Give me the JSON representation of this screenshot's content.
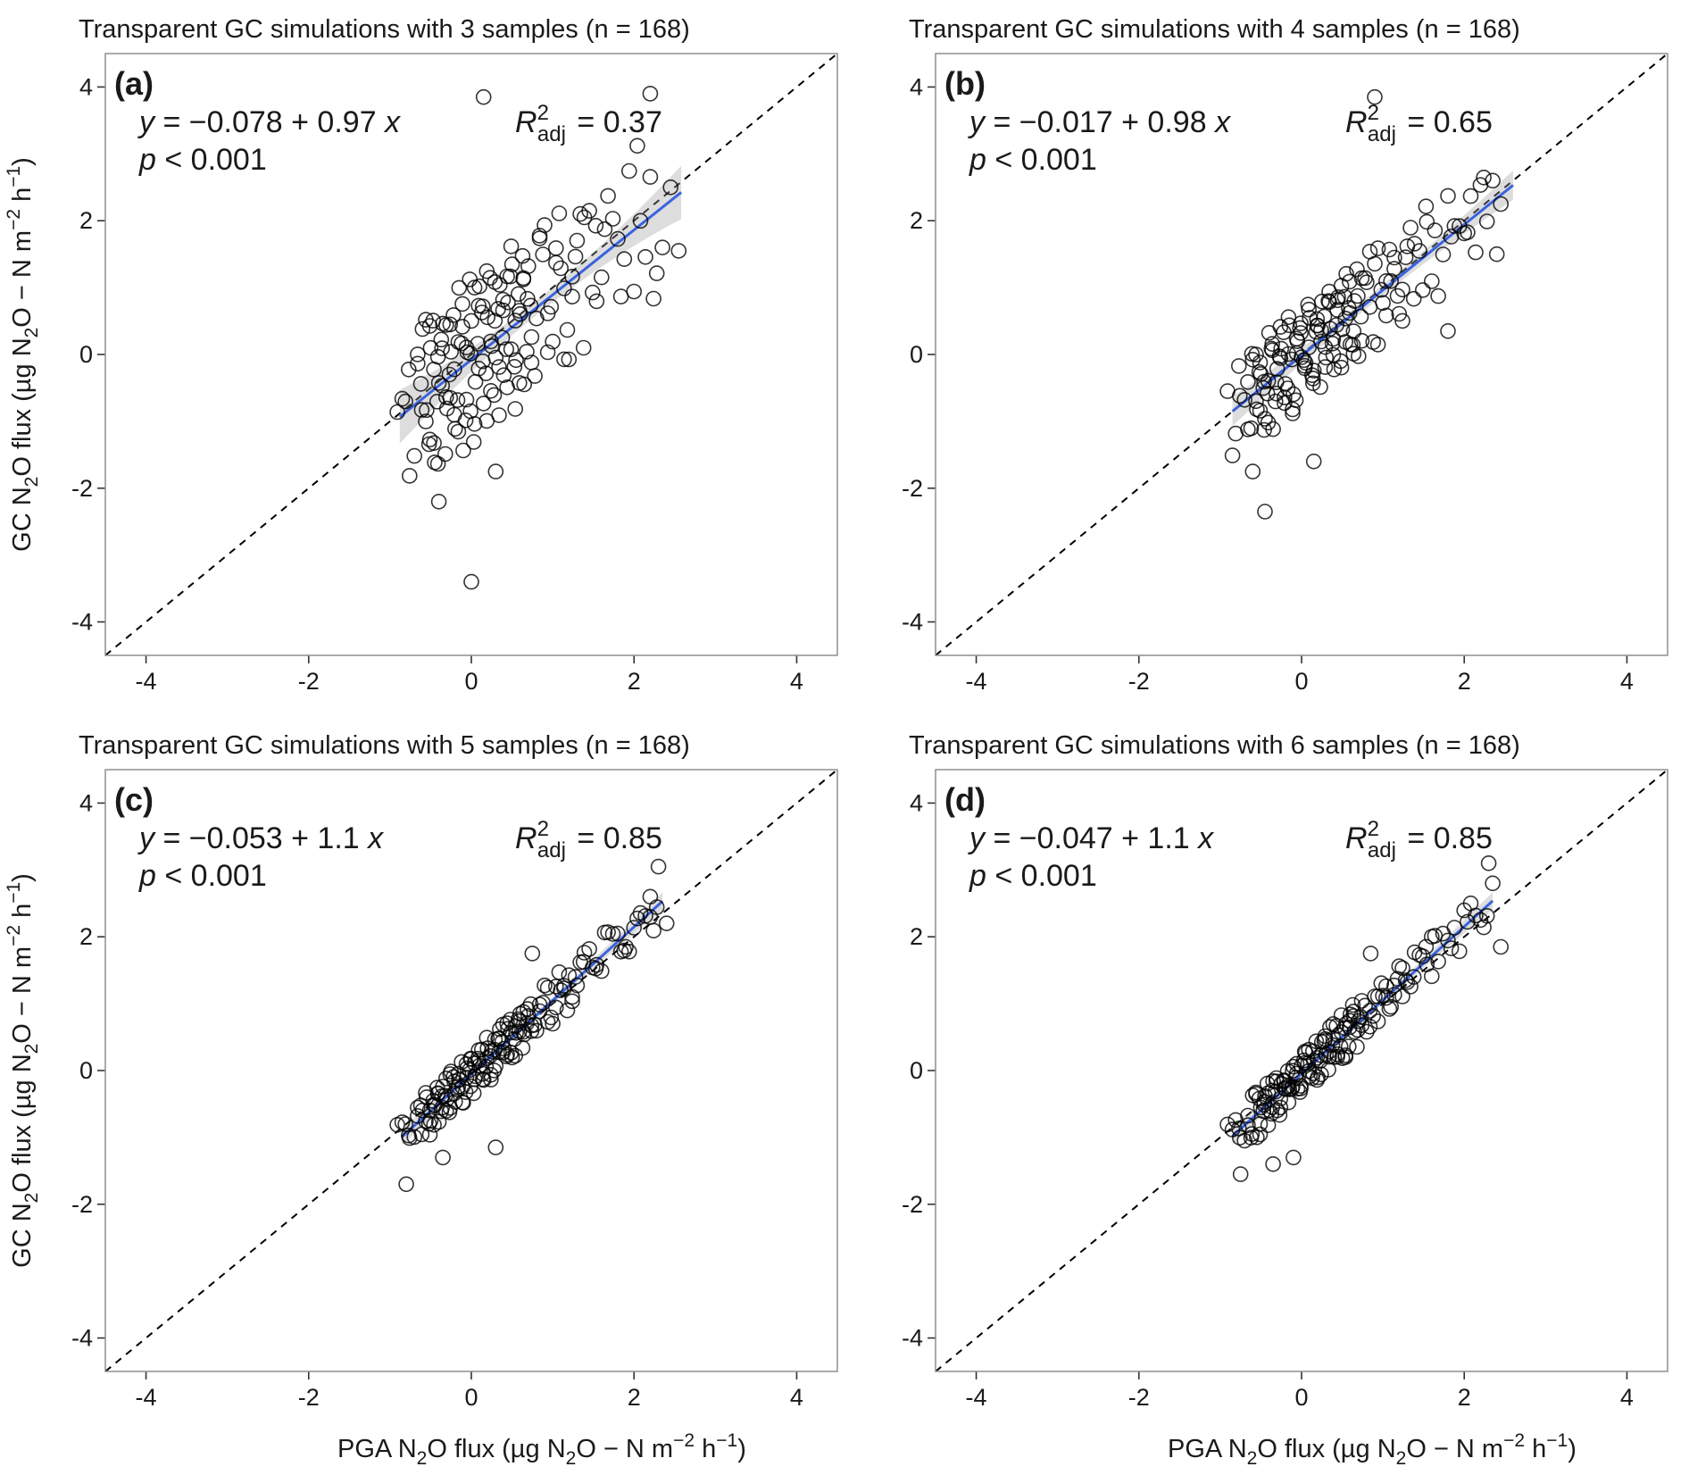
{
  "page": {
    "background": "#ffffff"
  },
  "chart_data": {
    "type": "scatter",
    "layout": "2x2",
    "shared": {
      "xlabel_segments": [
        {
          "t": "PGA N"
        },
        {
          "t": "2",
          "s": "sub"
        },
        {
          "t": "O flux (µg N"
        },
        {
          "t": "2",
          "s": "sub"
        },
        {
          "t": "O − N m"
        },
        {
          "t": "−2",
          "s": "sup"
        },
        {
          "t": " h"
        },
        {
          "t": "−1",
          "s": "sup"
        },
        {
          "t": ")"
        }
      ],
      "ylabel_segments": [
        {
          "t": "GC N"
        },
        {
          "t": "2",
          "s": "sub"
        },
        {
          "t": "O flux (µg N"
        },
        {
          "t": "2",
          "s": "sub"
        },
        {
          "t": "O − N m"
        },
        {
          "t": "−2",
          "s": "sup"
        },
        {
          "t": " h"
        },
        {
          "t": "−1",
          "s": "sup"
        },
        {
          "t": ")"
        }
      ],
      "xlim": [
        -4.5,
        4.5
      ],
      "ylim": [
        -4.5,
        4.5
      ],
      "ticks": [
        -4,
        -2,
        0,
        2,
        4
      ],
      "tick_labels": [
        "-4",
        "-2",
        "0",
        "2",
        "4"
      ],
      "n_per_panel": 168,
      "grid": "off",
      "identity_line": {
        "style": "dashed",
        "color": "#000000"
      },
      "fit_line_color": "#3a62e0",
      "ci_color": "#9e9e9e",
      "ci_opacity": 0.35,
      "point_color": "#000000",
      "points_note": "point coordinates estimated from plot; y = intercept + slope*x + resid_scale*residual_base[(i%40 + resid_step*floor(i/40) + resid_start) % 40], plus listed outlier points",
      "x_values": [
        -0.85,
        -0.7,
        -0.6,
        -0.55,
        -0.5,
        -0.45,
        -0.4,
        -0.35,
        -0.3,
        -0.25,
        -0.2,
        -0.15,
        -0.1,
        -0.05,
        0,
        0.05,
        0.1,
        0.15,
        0.2,
        0.25,
        0.3,
        0.35,
        0.4,
        0.45,
        0.5,
        0.55,
        0.6,
        0.65,
        0.7,
        0.8,
        0.9,
        1,
        1.1,
        1.2,
        1.3,
        1.45,
        1.6,
        1.8,
        2,
        2.2,
        -0.81,
        -0.66,
        -0.56,
        -0.51,
        -0.46,
        -0.41,
        -0.36,
        -0.31,
        -0.26,
        -0.21,
        -0.16,
        -0.11,
        -0.06,
        -0.01,
        0.04,
        0.09,
        0.14,
        0.19,
        0.24,
        0.29,
        0.34,
        0.39,
        0.44,
        0.49,
        0.54,
        0.59,
        0.64,
        0.69,
        0.74,
        0.84,
        0.94,
        1.04,
        1.14,
        1.24,
        1.34,
        1.49,
        1.64,
        1.84,
        2.04,
        2.24,
        -0.91,
        -0.76,
        -0.66,
        -0.61,
        -0.56,
        -0.51,
        -0.46,
        -0.41,
        -0.36,
        -0.31,
        -0.26,
        -0.21,
        -0.16,
        -0.11,
        -0.06,
        -0.01,
        0.04,
        0.09,
        0.14,
        0.19,
        0.24,
        0.29,
        0.34,
        0.39,
        0.44,
        0.49,
        0.54,
        0.59,
        0.64,
        0.74,
        0.84,
        0.94,
        1.04,
        1.14,
        1.24,
        1.39,
        1.54,
        1.74,
        1.94,
        2.14,
        -0.77,
        -0.62,
        -0.52,
        -0.47,
        -0.42,
        -0.37,
        -0.32,
        -0.27,
        -0.22,
        -0.17,
        -0.12,
        -0.07,
        -0.02,
        0.03,
        0.08,
        0.13,
        0.18,
        0.23,
        0.28,
        0.33,
        0.38,
        0.43,
        0.48,
        0.53,
        0.58,
        0.63,
        0.68,
        0.73,
        0.78,
        0.88,
        0.98,
        1.08,
        1.18,
        1.28,
        1.38,
        1.53,
        1.68,
        1.88,
        2.08,
        2.28
      ],
      "residual_base": [
        0.12,
        -0.38,
        0.52,
        -0.11,
        0.33,
        -0.55,
        0.02,
        0.44,
        -0.22,
        0.18,
        -0.42,
        0.61,
        -0.63,
        0.08,
        0.29,
        -0.19,
        0.5,
        -0.4,
        0.22,
        -0.02,
        -0.13,
        0.39,
        -0.31,
        0.21,
        0.47,
        -0.27,
        0.05,
        -0.5,
        0.36,
        -0.08,
        0.57,
        -0.35,
        0.15,
        -0.58,
        0.26,
        0.41,
        -0.16,
        0.03,
        -0.46,
        0.3
      ]
    },
    "panels": [
      {
        "id": "a",
        "row": 0,
        "col": 0,
        "label": "(a)",
        "title": "Transparent GC simulations with 3 samples (n = 168)",
        "equation": "y = −0.078 + 0.97 x",
        "r2_adj": "0.37",
        "p_text": "p < 0.001",
        "intercept": -0.078,
        "slope": 0.97,
        "resid_scale": 2.0,
        "resid_step": 13,
        "resid_start": 0,
        "fit_x": [
          -0.88,
          2.58
        ],
        "ci_mid": 0.11,
        "ci_end": 0.4,
        "outliers": [
          [
            0.15,
            3.85
          ],
          [
            2.2,
            3.9
          ],
          [
            2.55,
            1.55
          ],
          [
            2.35,
            1.6
          ],
          [
            2.45,
            2.5
          ],
          [
            0,
            -3.4
          ],
          [
            -0.4,
            -2.2
          ],
          [
            0.3,
            -1.75
          ]
        ]
      },
      {
        "id": "b",
        "row": 0,
        "col": 1,
        "label": "(b)",
        "title": "Transparent GC simulations with 4 samples (n = 168)",
        "equation": "y = −0.017 + 0.98 x",
        "r2_adj": "0.65",
        "p_text": "p < 0.001",
        "intercept": -0.017,
        "slope": 0.98,
        "resid_scale": 1.2,
        "resid_step": 17,
        "resid_start": 5,
        "fit_x": [
          -0.85,
          2.6
        ],
        "ci_mid": 0.08,
        "ci_end": 0.22,
        "outliers": [
          [
            0.9,
            3.85
          ],
          [
            2.35,
            2.6
          ],
          [
            2.45,
            2.25
          ],
          [
            2.4,
            1.5
          ],
          [
            1.8,
            0.35
          ],
          [
            -0.45,
            -2.35
          ],
          [
            -0.6,
            -1.75
          ],
          [
            0.15,
            -1.6
          ]
        ]
      },
      {
        "id": "c",
        "row": 1,
        "col": 0,
        "label": "(c)",
        "title": "Transparent GC simulations with 5 samples (n = 168)",
        "equation": "y = −0.053 + 1.1 x",
        "r2_adj": "0.85",
        "p_text": "p < 0.001",
        "intercept": -0.053,
        "slope": 1.1,
        "resid_scale": 0.55,
        "resid_step": 13,
        "resid_start": 21,
        "fit_x": [
          -0.85,
          2.35
        ],
        "ci_mid": 0.05,
        "ci_end": 0.13,
        "outliers": [
          [
            2.3,
            3.05
          ],
          [
            2.2,
            2.6
          ],
          [
            2.4,
            2.2
          ],
          [
            1.9,
            1.85
          ],
          [
            0.75,
            1.75
          ],
          [
            -0.8,
            -1.7
          ],
          [
            -0.35,
            -1.3
          ],
          [
            0.3,
            -1.15
          ]
        ]
      },
      {
        "id": "d",
        "row": 1,
        "col": 1,
        "label": "(d)",
        "title": "Transparent GC simulations with 6 samples (n = 168)",
        "equation": "y = −0.047 + 1.1 x",
        "r2_adj": "0.85",
        "p_text": "p < 0.001",
        "intercept": -0.047,
        "slope": 1.1,
        "resid_scale": 0.55,
        "resid_step": 19,
        "resid_start": 9,
        "fit_x": [
          -0.85,
          2.35
        ],
        "ci_mid": 0.05,
        "ci_end": 0.13,
        "outliers": [
          [
            2.3,
            3.1
          ],
          [
            2.35,
            2.8
          ],
          [
            2.45,
            1.85
          ],
          [
            1.6,
            2.0
          ],
          [
            0.85,
            1.75
          ],
          [
            -0.75,
            -1.55
          ],
          [
            -0.35,
            -1.4
          ],
          [
            -0.1,
            -1.3
          ]
        ]
      }
    ]
  }
}
